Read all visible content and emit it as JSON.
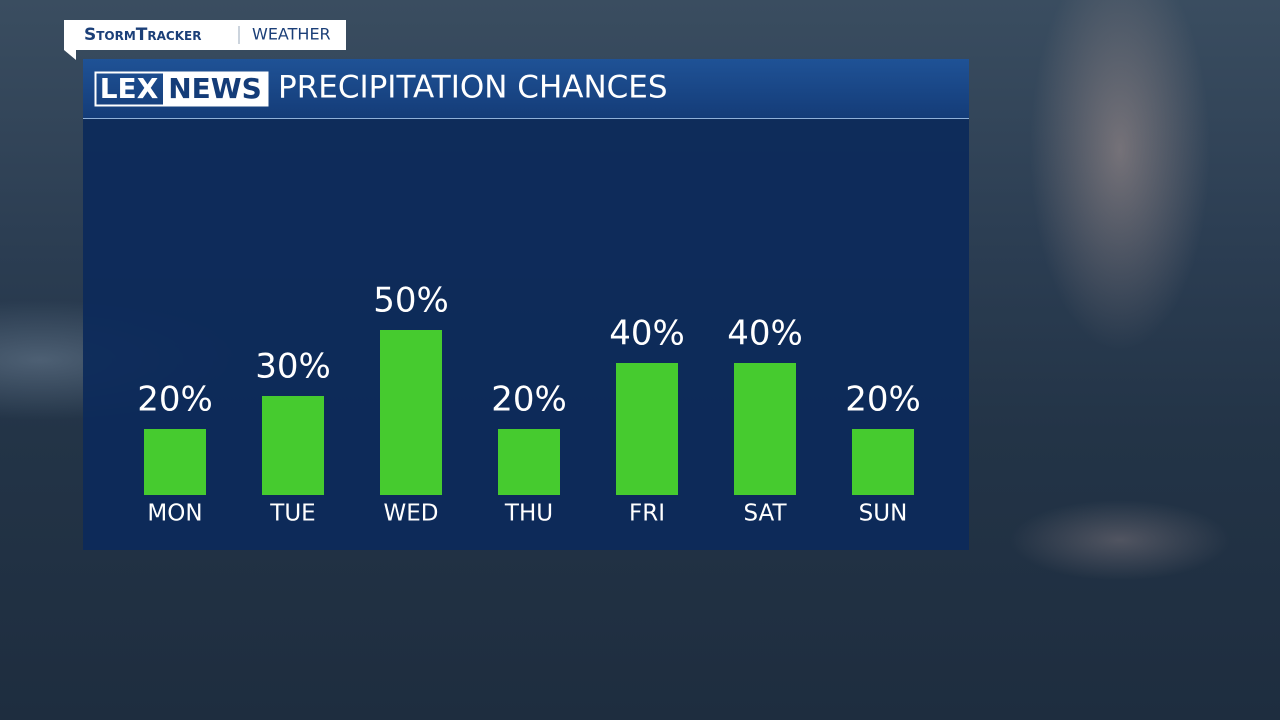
{
  "header": {
    "brand": "StormTracker",
    "section": "WEATHER"
  },
  "logo": {
    "left": "LEX",
    "right": "NEWS"
  },
  "chart_data": {
    "type": "bar",
    "title": "PRECIPITATION CHANCES",
    "categories": [
      "MON",
      "TUE",
      "WED",
      "THU",
      "FRI",
      "SAT",
      "SUN"
    ],
    "values": [
      20,
      30,
      50,
      20,
      40,
      40,
      20
    ],
    "value_labels": [
      "20%",
      "30%",
      "50%",
      "20%",
      "40%",
      "40%",
      "20%"
    ],
    "color": "#46cb2f"
  }
}
